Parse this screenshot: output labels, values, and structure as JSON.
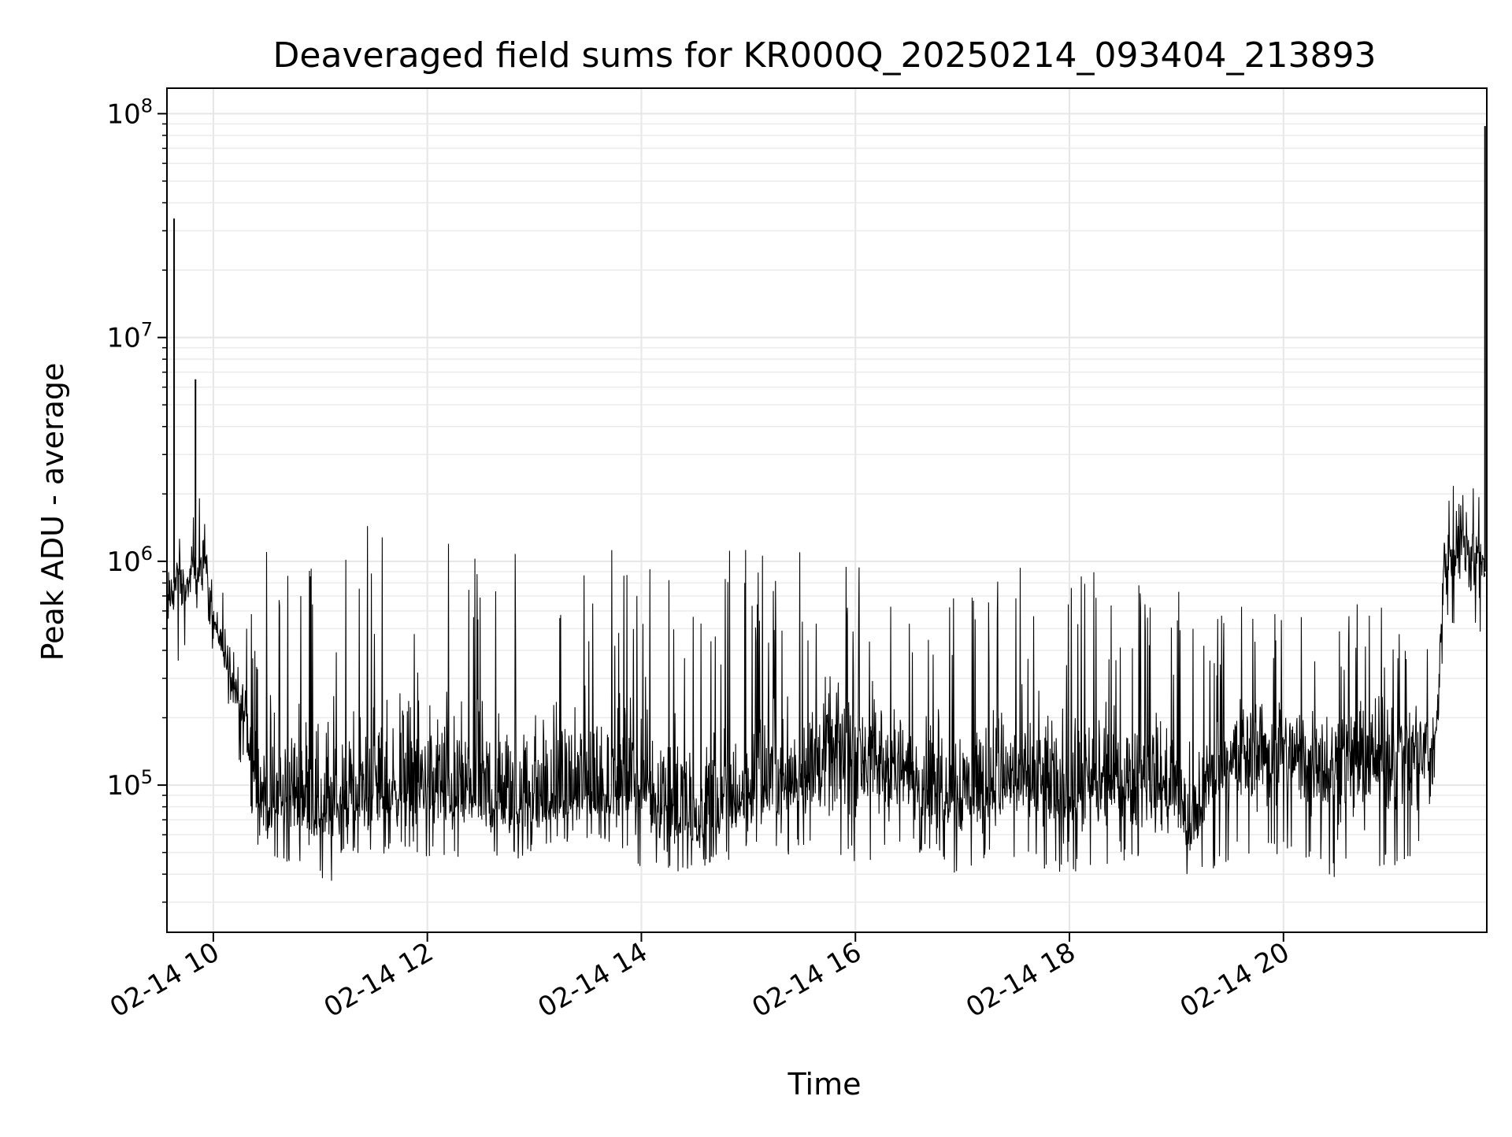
{
  "chart_data": {
    "type": "line",
    "title": "Deaveraged field sums for KR000Q_20250214_093404_213893",
    "xlabel": "Time",
    "ylabel": "Peak ADU - average",
    "x_axis": {
      "scale": "time",
      "range": [
        "2025-02-14 09:34",
        "2025-02-14 21:54"
      ],
      "ticks": [
        "2025-02-14 10:00",
        "2025-02-14 12:00",
        "2025-02-14 14:00",
        "2025-02-14 16:00",
        "2025-02-14 18:00",
        "2025-02-14 20:00"
      ],
      "tick_labels": [
        "02-14 10",
        "02-14 12",
        "02-14 14",
        "02-14 16",
        "02-14 18",
        "02-14 20"
      ]
    },
    "y_axis": {
      "scale": "log",
      "range": [
        22000,
        130000000
      ],
      "ticks": [
        100000,
        1000000,
        10000000,
        100000000
      ],
      "tick_labels": [
        {
          "base": "10",
          "exp": "5"
        },
        {
          "base": "10",
          "exp": "6"
        },
        {
          "base": "10",
          "exp": "7"
        },
        {
          "base": "10",
          "exp": "8"
        }
      ]
    },
    "grid": true,
    "legend": "none",
    "line_color": "#000000",
    "series": [
      {
        "x": [
          "2025-02-14 09:34",
          "2025-02-14 09:38",
          "2025-02-14 09:41",
          "2025-02-14 09:45",
          "2025-02-14 09:48",
          "2025-02-14 09:51",
          "2025-02-14 09:54",
          "2025-02-14 09:56",
          "2025-02-14 10:00",
          "2025-02-14 10:06",
          "2025-02-14 10:12",
          "2025-02-14 10:18",
          "2025-02-14 10:22",
          "2025-02-14 10:26",
          "2025-02-14 10:30",
          "2025-02-14 10:40",
          "2025-02-14 10:50",
          "2025-02-14 11:00",
          "2025-02-14 11:10",
          "2025-02-14 11:20",
          "2025-02-14 11:30",
          "2025-02-14 11:45",
          "2025-02-14 12:00",
          "2025-02-14 12:15",
          "2025-02-14 12:30",
          "2025-02-14 12:45",
          "2025-02-14 13:00",
          "2025-02-14 13:15",
          "2025-02-14 13:30",
          "2025-02-14 13:45",
          "2025-02-14 14:00",
          "2025-02-14 14:15",
          "2025-02-14 14:30",
          "2025-02-14 14:45",
          "2025-02-14 15:00",
          "2025-02-14 15:15",
          "2025-02-14 15:30",
          "2025-02-14 15:45",
          "2025-02-14 16:00",
          "2025-02-14 16:15",
          "2025-02-14 16:30",
          "2025-02-14 16:45",
          "2025-02-14 17:00",
          "2025-02-14 17:15",
          "2025-02-14 17:30",
          "2025-02-14 17:45",
          "2025-02-14 18:00",
          "2025-02-14 18:15",
          "2025-02-14 18:30",
          "2025-02-14 18:45",
          "2025-02-14 19:00",
          "2025-02-14 19:08",
          "2025-02-14 19:15",
          "2025-02-14 19:30",
          "2025-02-14 19:45",
          "2025-02-14 20:00",
          "2025-02-14 20:15",
          "2025-02-14 20:30",
          "2025-02-14 20:45",
          "2025-02-14 21:00",
          "2025-02-14 21:15",
          "2025-02-14 21:25",
          "2025-02-14 21:30",
          "2025-02-14 21:35",
          "2025-02-14 21:40",
          "2025-02-14 21:45",
          "2025-02-14 21:50",
          "2025-02-14 21:53"
        ],
        "y": [
          600000,
          800000,
          850000,
          750000,
          900000,
          850000,
          950000,
          1000000,
          550000,
          400000,
          250000,
          200000,
          120000,
          90000,
          80000,
          85000,
          90000,
          75000,
          80000,
          85000,
          90000,
          95000,
          100000,
          90000,
          85000,
          80000,
          80000,
          85000,
          90000,
          95000,
          100000,
          80000,
          65000,
          75000,
          90000,
          100000,
          110000,
          130000,
          140000,
          120000,
          110000,
          100000,
          95000,
          100000,
          105000,
          95000,
          90000,
          95000,
          100000,
          105000,
          90000,
          55000,
          90000,
          130000,
          150000,
          140000,
          130000,
          125000,
          130000,
          135000,
          140000,
          135000,
          1000000,
          1100000,
          1200000,
          1150000,
          1050000,
          900000
        ],
        "spikes": [
          {
            "x": "2025-02-14 09:38",
            "y": 34000000
          },
          {
            "x": "2025-02-14 09:50",
            "y": 6500000
          },
          {
            "x": "2025-02-14 21:53",
            "y": 88000000
          }
        ],
        "envelope": {
          "upper": [
            1700000,
            1800000,
            1500000,
            1400000,
            1800000,
            1600000,
            2500000,
            1100000,
            900000,
            900000,
            700000,
            700000,
            600000,
            900000,
            1500000,
            900000,
            1100000,
            1300000,
            1400000,
            1400000,
            1500000,
            1500000,
            1500000,
            1400000,
            1400000,
            1300000,
            1300000,
            1400000,
            1300000,
            1300000,
            1300000,
            1400000,
            1100000,
            1100000,
            1150000,
            1100000,
            1100000,
            1100000,
            1000000,
            950000,
            900000,
            900000,
            800000,
            900000,
            1000000,
            1000000,
            1000000,
            900000,
            800000,
            800000,
            750000,
            700000,
            750000,
            650000,
            700000,
            700000,
            650000,
            700000,
            650000,
            650000,
            600000,
            600000,
            2000000,
            2300000,
            2100000,
            2200000,
            2600000,
            2700000
          ],
          "lower": [
            380000,
            400000,
            330000,
            450000,
            650000,
            600000,
            700000,
            650000,
            380000,
            300000,
            140000,
            100000,
            70000,
            45000,
            42000,
            45000,
            45000,
            38000,
            33000,
            50000,
            48000,
            50000,
            48000,
            45000,
            48000,
            45000,
            50000,
            55000,
            55000,
            55000,
            42000,
            40000,
            42000,
            45000,
            50000,
            48000,
            50000,
            48000,
            45000,
            45000,
            50000,
            48000,
            36000,
            48000,
            45000,
            42000,
            40000,
            42000,
            45000,
            45000,
            40000,
            37000,
            40000,
            45000,
            45000,
            45000,
            40000,
            38000,
            40000,
            42000,
            45000,
            47000,
            550000,
            480000,
            500000,
            520000,
            480000,
            420000
          ]
        }
      }
    ]
  }
}
